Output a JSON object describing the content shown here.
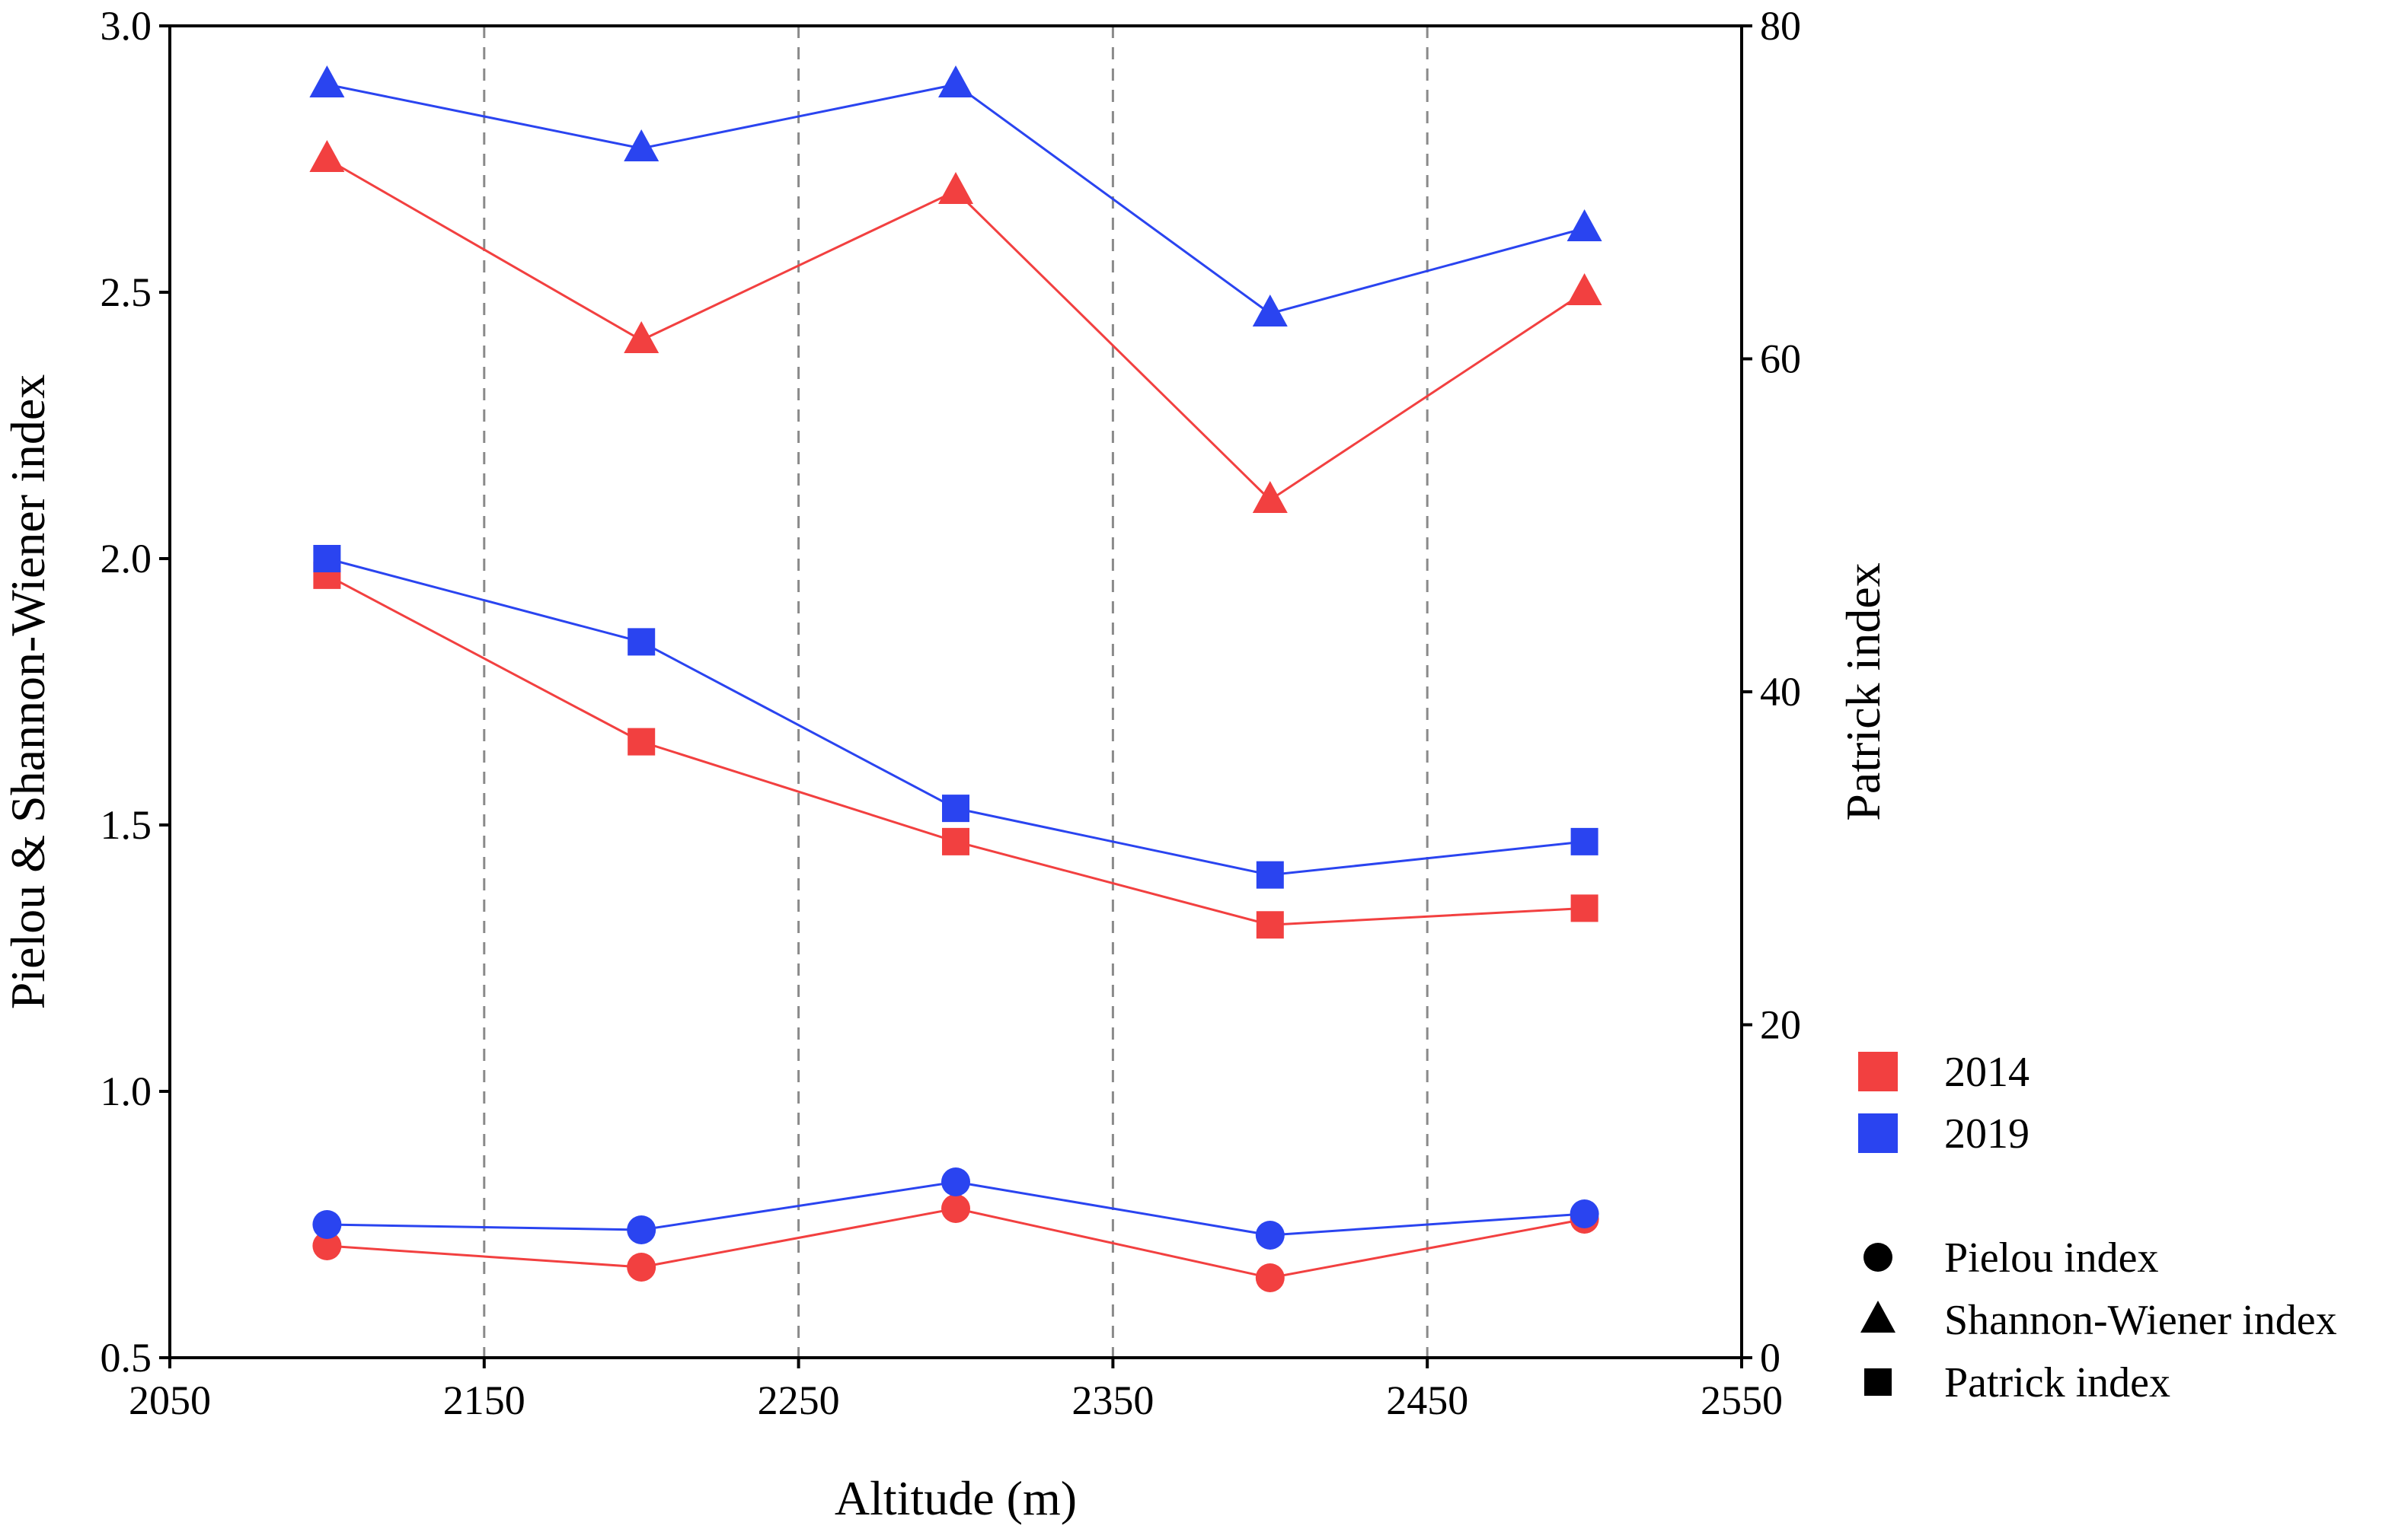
{
  "chart_data": {
    "type": "line",
    "title": "",
    "xlabel": "Altitude (m)",
    "ylabel_left": "Pielou & Shannon-Wiener index",
    "ylabel_right": "Patrick index",
    "xlim": [
      2050,
      2550
    ],
    "ylim_left": [
      0.5,
      3.0
    ],
    "ylim_right": [
      0,
      80
    ],
    "x_ticks": [
      2050,
      2150,
      2250,
      2350,
      2450,
      2550
    ],
    "y_left_ticks": [
      "0.5",
      "1.0",
      "1.5",
      "2.0",
      "2.5",
      "3.0"
    ],
    "y_right_ticks": [
      0,
      20,
      40,
      60,
      80
    ],
    "vertical_dashed_lines": [
      2150,
      2250,
      2350,
      2450
    ],
    "grid": false,
    "legend_position": "right",
    "x": [
      2100,
      2200,
      2300,
      2400,
      2500
    ],
    "series": [
      {
        "name": "2014 Shannon-Wiener index",
        "year": "2014",
        "index": "Shannon-Wiener index",
        "marker": "triangle",
        "axis": "left",
        "color": "#f24040",
        "values": [
          2.75,
          2.41,
          2.69,
          2.11,
          2.5
        ]
      },
      {
        "name": "2019 Shannon-Wiener index",
        "year": "2019",
        "index": "Shannon-Wiener index",
        "marker": "triangle",
        "axis": "left",
        "color": "#2a44f0",
        "values": [
          2.89,
          2.77,
          2.89,
          2.46,
          2.62
        ]
      },
      {
        "name": "2014 Patrick index",
        "year": "2014",
        "index": "Patrick index",
        "marker": "square",
        "axis": "right",
        "color": "#f24040",
        "values": [
          47,
          37,
          31,
          26,
          27
        ]
      },
      {
        "name": "2019 Patrick index",
        "year": "2019",
        "index": "Patrick index",
        "marker": "square",
        "axis": "right",
        "color": "#2a44f0",
        "values": [
          48,
          43,
          33,
          29,
          31
        ]
      },
      {
        "name": "2014 Pielou index",
        "year": "2014",
        "index": "Pielou index",
        "marker": "circle",
        "axis": "left",
        "color": "#f24040",
        "values": [
          0.71,
          0.67,
          0.78,
          0.65,
          0.76
        ]
      },
      {
        "name": "2019 Pielou index",
        "year": "2019",
        "index": "Pielou index",
        "marker": "circle",
        "axis": "left",
        "color": "#2a44f0",
        "values": [
          0.75,
          0.74,
          0.83,
          0.73,
          0.77
        ]
      }
    ],
    "legend": {
      "years": [
        {
          "label": "2014",
          "color": "#f24040"
        },
        {
          "label": "2019",
          "color": "#2a44f0"
        }
      ],
      "markers": [
        {
          "label": "Pielou index",
          "marker": "circle"
        },
        {
          "label": "Shannon-Wiener index",
          "marker": "triangle"
        },
        {
          "label": "Patrick index",
          "marker": "square"
        }
      ]
    }
  }
}
